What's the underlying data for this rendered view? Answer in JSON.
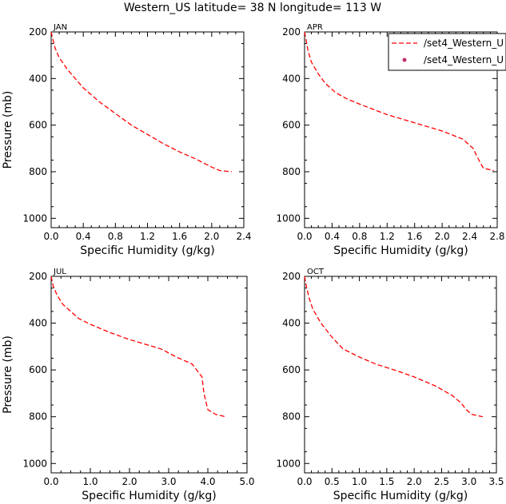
{
  "figure_title": "Western_US  latitude= 38 N longitude= 113 W",
  "colors": {
    "model": "#ff0000",
    "obs": "#c0306a",
    "axis": "#000000"
  },
  "legend": {
    "entries": [
      {
        "label": "/set4_Western_U",
        "style": "dashed-line"
      },
      {
        "label": "/set4_Western_U",
        "style": "dot"
      }
    ]
  },
  "chart_data": [
    {
      "type": "line",
      "panel": "JAN",
      "title": "JAN",
      "xlabel": "Specific Humidity (g/kg)",
      "ylabel": "Pressure (mb)",
      "xlim": [
        0,
        2.4
      ],
      "ylim": [
        1040,
        200
      ],
      "xticks": [
        "0.0",
        "0.4",
        "0.8",
        "1.2",
        "1.6",
        "2.0",
        "2.4"
      ],
      "yticks": [
        "200",
        "400",
        "600",
        "800",
        "1000"
      ],
      "series": [
        {
          "name": "/set4_Western_U",
          "style": "dashed",
          "x": [
            0.0,
            0.02,
            0.05,
            0.1,
            0.2,
            0.3,
            0.4,
            0.6,
            0.8,
            1.0,
            1.2,
            1.4,
            1.6,
            1.8,
            2.0,
            2.1,
            2.25
          ],
          "y": [
            200,
            230,
            270,
            310,
            360,
            400,
            440,
            500,
            550,
            600,
            640,
            680,
            715,
            745,
            780,
            795,
            800
          ]
        }
      ]
    },
    {
      "type": "line",
      "panel": "APR",
      "title": "APR",
      "xlabel": "Specific Humidity (g/kg)",
      "ylabel": "",
      "xlim": [
        0,
        2.8
      ],
      "ylim": [
        1040,
        200
      ],
      "xticks": [
        "0.0",
        "0.4",
        "0.8",
        "1.2",
        "1.6",
        "2.0",
        "2.4",
        "2.8"
      ],
      "yticks": [
        "200",
        "400",
        "600",
        "800",
        "1000"
      ],
      "series": [
        {
          "name": "/set4_Western_U",
          "style": "dashed",
          "x": [
            0.0,
            0.02,
            0.05,
            0.1,
            0.2,
            0.3,
            0.45,
            0.6,
            0.8,
            1.2,
            1.6,
            2.0,
            2.3,
            2.45,
            2.55,
            2.6,
            2.75
          ],
          "y": [
            200,
            230,
            280,
            330,
            380,
            420,
            460,
            485,
            510,
            555,
            590,
            625,
            660,
            700,
            760,
            785,
            795
          ]
        }
      ]
    },
    {
      "type": "line",
      "panel": "JUL",
      "title": "JUL",
      "xlabel": "Specific Humidity (g/kg)",
      "ylabel": "Pressure (mb)",
      "xlim": [
        0,
        5.0
      ],
      "ylim": [
        1040,
        200
      ],
      "xticks": [
        "0.0",
        "1.0",
        "2.0",
        "3.0",
        "4.0",
        "5.0"
      ],
      "yticks": [
        "200",
        "400",
        "600",
        "800",
        "1000"
      ],
      "series": [
        {
          "name": "/set4_Western_U",
          "style": "dashed",
          "x": [
            0.0,
            0.05,
            0.15,
            0.3,
            0.5,
            0.7,
            1.0,
            1.5,
            2.0,
            2.5,
            2.8,
            3.2,
            3.6,
            3.85,
            3.9,
            4.0,
            4.2,
            4.45
          ],
          "y": [
            200,
            240,
            280,
            320,
            350,
            380,
            405,
            440,
            470,
            495,
            510,
            545,
            575,
            630,
            700,
            770,
            790,
            800
          ]
        }
      ]
    },
    {
      "type": "line",
      "panel": "OCT",
      "title": "OCT",
      "xlabel": "Specific Humidity (g/kg)",
      "ylabel": "",
      "xlim": [
        0,
        3.5
      ],
      "ylim": [
        1040,
        200
      ],
      "xticks": [
        "0.0",
        "0.5",
        "1.0",
        "1.5",
        "2.0",
        "2.5",
        "3.0",
        "3.5"
      ],
      "yticks": [
        "200",
        "400",
        "600",
        "800",
        "1000"
      ],
      "series": [
        {
          "name": "/set4_Western_U",
          "style": "dashed",
          "x": [
            0.0,
            0.03,
            0.08,
            0.15,
            0.3,
            0.5,
            0.7,
            1.0,
            1.3,
            1.7,
            2.0,
            2.4,
            2.7,
            2.85,
            2.95,
            3.05,
            3.25
          ],
          "y": [
            200,
            240,
            290,
            340,
            400,
            460,
            510,
            545,
            575,
            605,
            630,
            670,
            710,
            740,
            770,
            790,
            800
          ]
        }
      ]
    }
  ]
}
